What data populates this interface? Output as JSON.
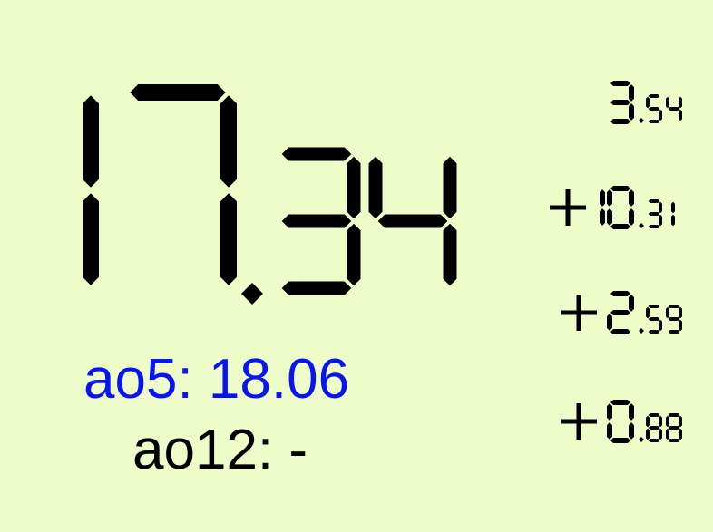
{
  "timer": {
    "whole": "17",
    "fraction": "34"
  },
  "splits": [
    {
      "sign": "",
      "whole": "3",
      "fraction": "54"
    },
    {
      "sign": "+",
      "whole": "10",
      "fraction": "31"
    },
    {
      "sign": "+",
      "whole": "2",
      "fraction": "59"
    },
    {
      "sign": "+",
      "whole": "0",
      "fraction": "88"
    }
  ],
  "averages": {
    "ao5_label": "ao5: 18.06",
    "ao12_label": "ao12: -"
  },
  "colors": {
    "background": "#eefcca",
    "digits": "#000000",
    "ao5": "#0a14ee",
    "ao12": "#000000"
  }
}
